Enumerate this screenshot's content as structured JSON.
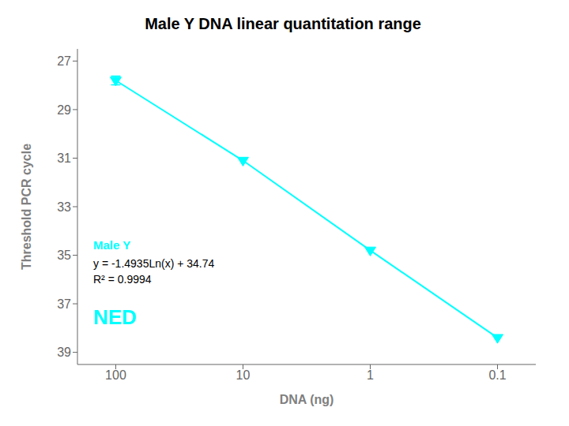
{
  "chart_data": {
    "type": "line",
    "title": "Male Y DNA linear quantitation range",
    "xlabel": "DNA (ng)",
    "ylabel": "Threshold PCR cycle",
    "x": [
      100,
      10,
      1,
      0.1
    ],
    "series": [
      {
        "color": "#00FFFF",
        "marker": "triangle-down",
        "values": [
          27.8,
          31.1,
          34.8,
          38.4
        ],
        "errors": [
          0.18,
          0.0,
          0.0,
          0.0
        ]
      }
    ],
    "log": "x",
    "grid": false,
    "xlim": [
      200,
      0.05
    ],
    "ylim": [
      39.5,
      26.5
    ],
    "xticks": [
      100,
      10,
      1,
      0.1
    ],
    "yticks": [
      27,
      29,
      31,
      33,
      35,
      37,
      39
    ],
    "annotations": [
      "Male Y",
      "y = -1.4935Ln(x) + 34.74",
      "R² = 0.9994",
      "NED"
    ]
  }
}
